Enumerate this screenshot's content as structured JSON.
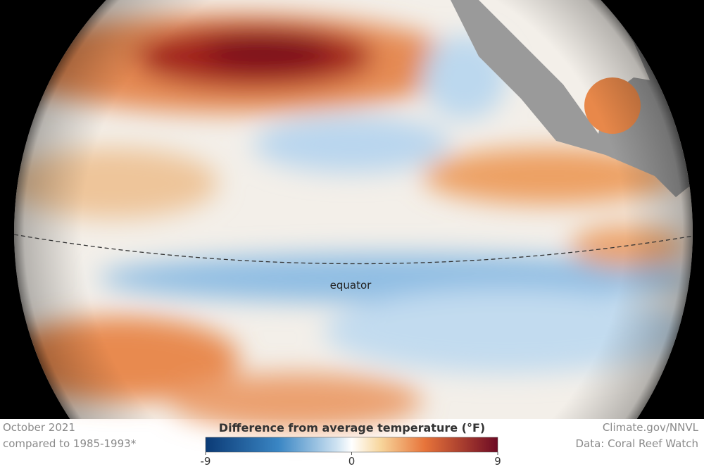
{
  "map": {
    "label": "equator"
  },
  "footer": {
    "date": "October 2021",
    "baseline": "compared to 1985-1993*",
    "credit": "Climate.gov/NNVL",
    "source": "Data: Coral Reef Watch"
  },
  "colorbar": {
    "title": "Difference from average temperature (°F)",
    "range": [
      -9,
      9
    ],
    "ticks": [
      -9,
      0,
      9
    ]
  }
}
